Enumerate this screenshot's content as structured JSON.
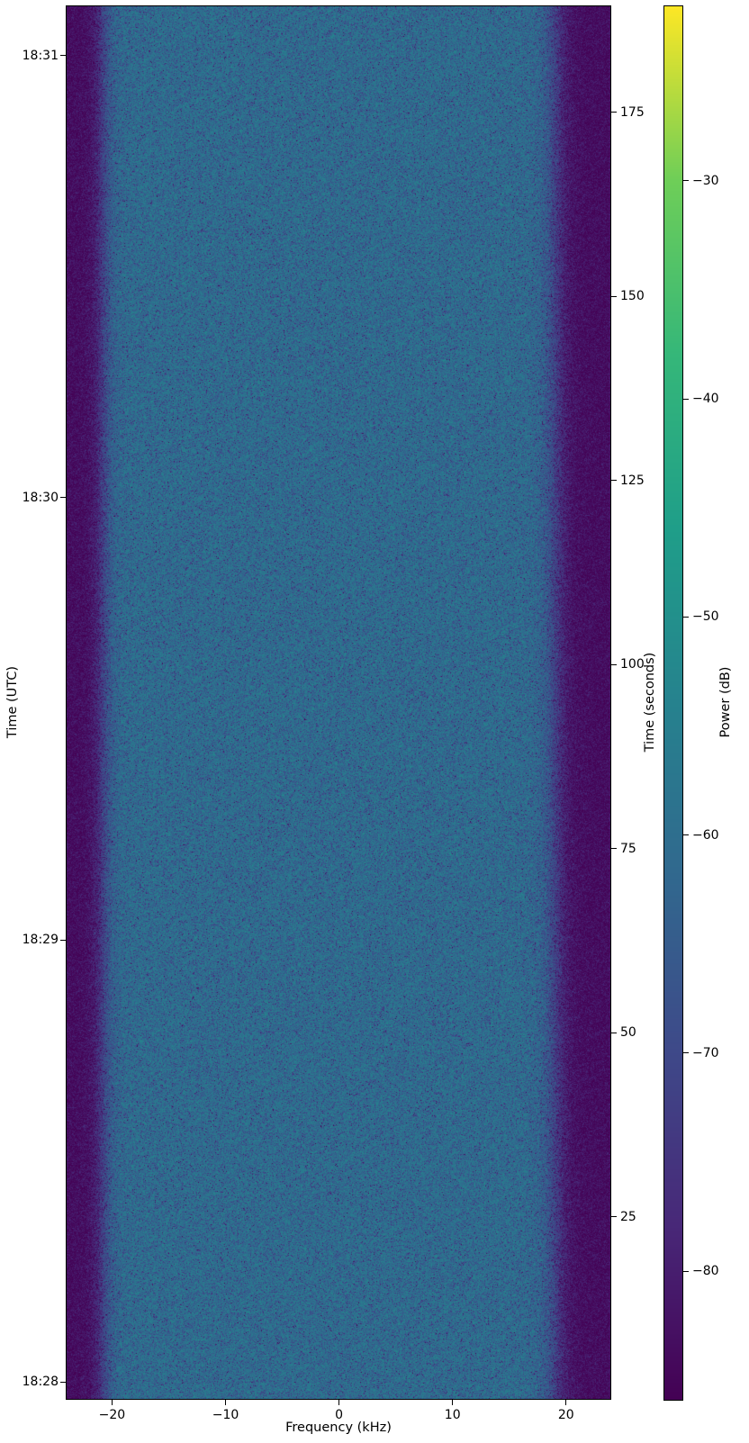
{
  "chart_data": {
    "type": "heatmap",
    "subtype": "spectrogram-waterfall",
    "colormap": "viridis",
    "title": "",
    "xlabel": "Frequency (kHz)",
    "x_range_khz": [
      -24.0,
      23.9
    ],
    "x_ticks": [
      -20,
      -10,
      0,
      10,
      20
    ],
    "left_axis": {
      "label": "Time (UTC)",
      "ticks": [
        {
          "label": "18:31",
          "seconds": 182.7
        },
        {
          "label": "18:30",
          "seconds": 122.7
        },
        {
          "label": "18:29",
          "seconds": 62.6
        },
        {
          "label": "18:28",
          "seconds": 2.6
        }
      ]
    },
    "right_axis": {
      "label": "Time (seconds)",
      "range_seconds": [
        0.3,
        189.4
      ],
      "ticks": [
        175,
        150,
        125,
        100,
        75,
        50,
        25
      ]
    },
    "colorbar": {
      "label": "Power (dB)",
      "range_db": [
        -85.9,
        -22.0
      ],
      "ticks": [
        -30,
        -40,
        -50,
        -60,
        -70,
        -80
      ]
    },
    "signal": {
      "noise_floor_db": -85,
      "inband_db": -59,
      "passband_khz": [
        -20.9,
        19.2
      ],
      "edge_softness_khz": [
        0.5,
        0.65
      ],
      "grid": false,
      "legend": false
    }
  }
}
